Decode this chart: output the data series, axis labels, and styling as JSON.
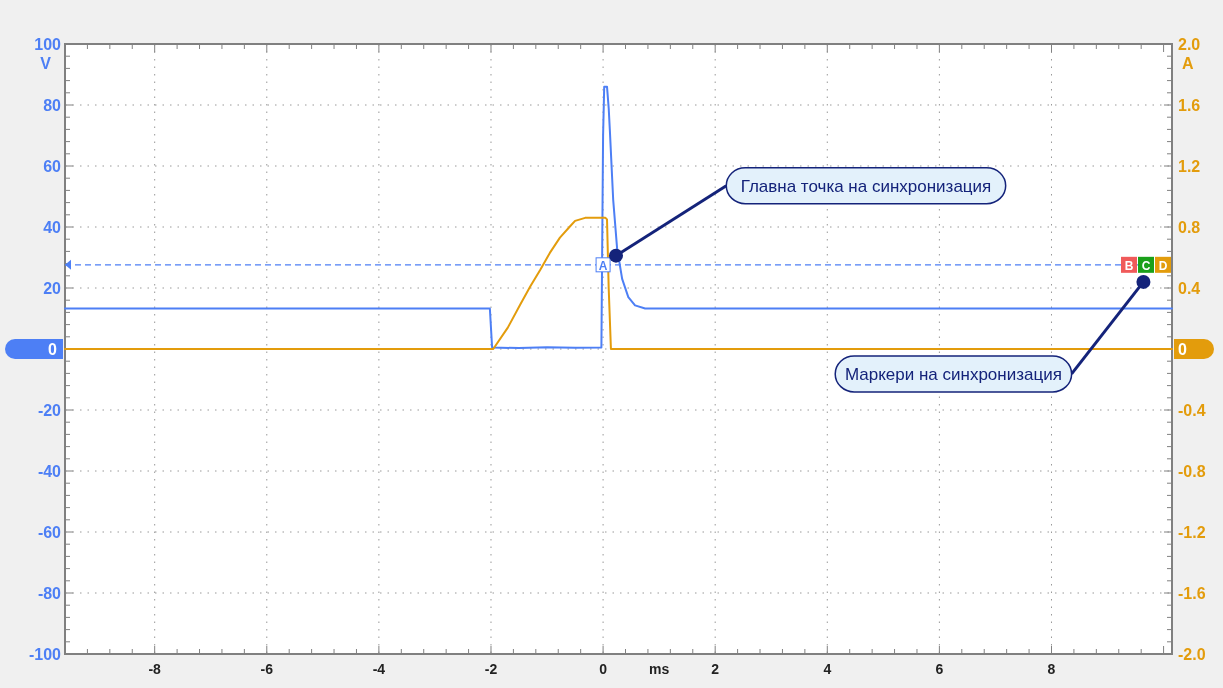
{
  "chart_data": {
    "type": "line",
    "xlabel": "ms",
    "ylabel": "V",
    "y2label": "A",
    "xlim": [
      -9.6,
      10.15
    ],
    "xticks": [
      -8,
      -6,
      -4,
      -2,
      0,
      2,
      4,
      6,
      8
    ],
    "ylim": [
      -100,
      100
    ],
    "yticks": [
      -100,
      -80,
      -60,
      -40,
      -20,
      0,
      20,
      40,
      60,
      80,
      100
    ],
    "y2lim": [
      -2,
      2
    ],
    "y2ticks": [
      {
        "value": -2,
        "label": "-2.0"
      },
      -1.6,
      -1.2,
      -0.8,
      -0.4,
      0,
      0.4,
      0.8,
      1.2,
      1.6,
      {
        "value": 2,
        "label": "2.0"
      }
    ],
    "grid": true,
    "line_style": "solid",
    "series": [
      {
        "color": "#4d7ff5",
        "x": [
          -9.6,
          -2.02,
          -1.98,
          -1.5,
          -1,
          -0.5,
          -0.03,
          0.0,
          0.02,
          0.07,
          0.1,
          0.12,
          0.18,
          0.25,
          0.34,
          0.45,
          0.57,
          0.75,
          2,
          4,
          6,
          8,
          10.15
        ],
        "values": [
          13.3,
          13.3,
          0.5,
          0.3,
          0.6,
          0.4,
          0.5,
          70,
          86,
          86,
          79,
          72,
          49,
          33,
          23,
          17,
          14.3,
          13.3,
          13.3,
          13.3,
          13.3,
          13.3,
          13.3
        ]
      },
      {
        "color": "#e39c0c",
        "axis": "y2",
        "x": [
          -9.6,
          -1.96,
          -1.7,
          -1.48,
          -1.3,
          -1.12,
          -0.95,
          -0.77,
          -0.6,
          -0.5,
          -0.32,
          0.04,
          0.07,
          0.1,
          0.14,
          2,
          4,
          6,
          8,
          10.15
        ],
        "values": [
          0,
          0,
          0.14,
          0.29,
          0.41,
          0.52,
          0.63,
          0.73,
          0.8,
          0.84,
          0.86,
          0.86,
          0.85,
          0.4,
          0,
          0,
          0,
          0,
          0,
          0
        ]
      }
    ],
    "ref_lines": [
      {
        "axis": "y",
        "value": 27.6,
        "label": "A",
        "color": "#4d7ff5",
        "line_style": "dashed"
      }
    ],
    "annotations": [
      {
        "text": "Главна точка на синхронизация",
        "x": 0.23,
        "y": 30.6
      },
      {
        "text": "Маркери на синхронизация",
        "x": 9.64,
        "y": 22
      },
      "B",
      "C",
      "D"
    ]
  }
}
